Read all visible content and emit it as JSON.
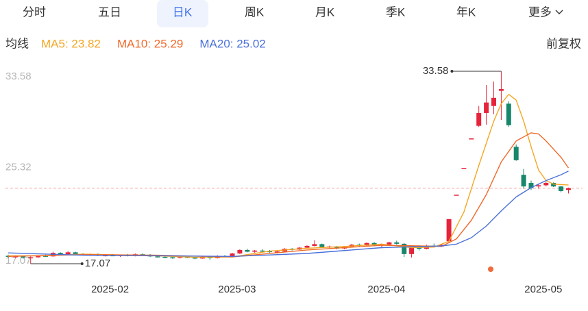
{
  "tabs": [
    "分时",
    "五日",
    "日K",
    "周K",
    "月K",
    "季K",
    "年K",
    "更多"
  ],
  "selected_tab": 2,
  "ma_label": "均线",
  "adjust_label": "前复权",
  "chart_data": {
    "type": "candlestick",
    "ylim": [
      17.07,
      33.58
    ],
    "yticks": [
      33.58,
      25.32,
      17.07
    ],
    "xlim": [
      0,
      75
    ],
    "xticks": [
      {
        "value": 14,
        "label": "2025-02"
      },
      {
        "value": 31,
        "label": "2025-03"
      },
      {
        "value": 51,
        "label": "2025-04"
      },
      {
        "value": 72,
        "label": "2025-05"
      }
    ],
    "up_color": "#e5243b",
    "down_color": "#17876b",
    "ohlc": [
      [
        17.75,
        17.85,
        17.6,
        17.68
      ],
      [
        17.68,
        17.8,
        17.55,
        17.72
      ],
      [
        17.72,
        17.78,
        17.5,
        17.6
      ],
      [
        17.6,
        17.7,
        17.07,
        17.62
      ],
      [
        17.62,
        17.8,
        17.58,
        17.75
      ],
      [
        17.75,
        17.85,
        17.65,
        17.7
      ],
      [
        17.7,
        18.1,
        17.68,
        18.0
      ],
      [
        18.0,
        18.05,
        17.8,
        17.85
      ],
      [
        17.85,
        18.15,
        17.82,
        18.05
      ],
      [
        18.05,
        18.1,
        17.85,
        17.9
      ],
      [
        17.9,
        17.98,
        17.78,
        17.82
      ],
      [
        17.82,
        17.95,
        17.75,
        17.9
      ],
      [
        17.9,
        17.95,
        17.72,
        17.78
      ],
      [
        17.78,
        17.88,
        17.7,
        17.8
      ],
      [
        17.8,
        17.9,
        17.72,
        17.76
      ],
      [
        17.76,
        17.85,
        17.65,
        17.82
      ],
      [
        17.82,
        17.9,
        17.7,
        17.74
      ],
      [
        17.74,
        17.95,
        17.7,
        17.88
      ],
      [
        17.88,
        17.96,
        17.78,
        17.84
      ],
      [
        17.84,
        17.9,
        17.66,
        17.7
      ],
      [
        17.7,
        17.78,
        17.6,
        17.66
      ],
      [
        17.66,
        17.74,
        17.55,
        17.62
      ],
      [
        17.62,
        17.7,
        17.5,
        17.58
      ],
      [
        17.58,
        17.72,
        17.52,
        17.66
      ],
      [
        17.66,
        17.76,
        17.55,
        17.6
      ],
      [
        17.6,
        17.65,
        17.45,
        17.52
      ],
      [
        17.52,
        17.7,
        17.5,
        17.64
      ],
      [
        17.64,
        17.72,
        17.4,
        17.55
      ],
      [
        17.55,
        17.8,
        17.52,
        17.74
      ],
      [
        17.74,
        17.82,
        17.62,
        17.68
      ],
      [
        17.68,
        18.0,
        17.65,
        17.95
      ],
      [
        17.95,
        18.3,
        17.9,
        18.25
      ],
      [
        18.25,
        18.35,
        18.05,
        18.1
      ],
      [
        18.1,
        18.25,
        18.0,
        18.2
      ],
      [
        18.2,
        18.32,
        18.08,
        18.15
      ],
      [
        18.15,
        18.25,
        18.02,
        18.08
      ],
      [
        18.08,
        18.2,
        17.95,
        18.12
      ],
      [
        18.12,
        18.4,
        18.1,
        18.35
      ],
      [
        18.35,
        18.42,
        18.2,
        18.28
      ],
      [
        18.28,
        18.5,
        18.25,
        18.45
      ],
      [
        18.45,
        18.65,
        18.4,
        18.6
      ],
      [
        18.6,
        19.1,
        18.55,
        18.75
      ],
      [
        18.75,
        18.8,
        18.45,
        18.5
      ],
      [
        18.5,
        18.62,
        18.4,
        18.55
      ],
      [
        18.55,
        18.6,
        18.3,
        18.38
      ],
      [
        18.38,
        18.55,
        18.32,
        18.5
      ],
      [
        18.5,
        18.78,
        18.45,
        18.7
      ],
      [
        18.7,
        18.8,
        18.55,
        18.62
      ],
      [
        18.62,
        18.9,
        18.58,
        18.85
      ],
      [
        18.85,
        18.92,
        18.6,
        18.66
      ],
      [
        18.66,
        18.8,
        18.4,
        18.72
      ],
      [
        18.72,
        18.95,
        18.68,
        18.9
      ],
      [
        18.9,
        19.05,
        18.7,
        18.78
      ],
      [
        18.78,
        18.85,
        17.65,
        17.9
      ],
      [
        17.9,
        18.55,
        17.6,
        18.5
      ],
      [
        18.5,
        18.65,
        18.2,
        18.35
      ],
      [
        18.35,
        18.7,
        18.3,
        18.62
      ],
      [
        18.62,
        18.8,
        18.45,
        18.55
      ],
      [
        18.55,
        18.75,
        18.5,
        18.7
      ],
      [
        19.0,
        20.9,
        18.9,
        20.9
      ],
      [
        22.99,
        22.99,
        22.99,
        22.99
      ],
      [
        25.29,
        25.29,
        25.29,
        25.29
      ],
      [
        27.82,
        27.82,
        27.82,
        27.82
      ],
      [
        28.9,
        30.6,
        28.8,
        30.0
      ],
      [
        30.0,
        32.4,
        29.0,
        30.9
      ],
      [
        30.6,
        32.7,
        29.9,
        31.3
      ],
      [
        31.9,
        33.58,
        29.4,
        32.05
      ],
      [
        30.8,
        31.0,
        28.8,
        28.95
      ],
      [
        27.1,
        27.3,
        25.9,
        25.95
      ],
      [
        24.7,
        25.2,
        23.5,
        23.7
      ],
      [
        24.0,
        24.2,
        23.4,
        23.55
      ],
      [
        23.7,
        23.95,
        23.5,
        23.8
      ],
      [
        23.8,
        24.1,
        23.7,
        24.0
      ],
      [
        24.0,
        24.05,
        23.65,
        23.7
      ],
      [
        23.7,
        23.75,
        23.2,
        23.3
      ],
      [
        23.4,
        23.6,
        23.1,
        23.55
      ]
    ],
    "ma": [
      {
        "name": "MA5: 23.82",
        "color": "#f5a623",
        "x": [
          0,
          5,
          10,
          15,
          20,
          25,
          30,
          35,
          40,
          45,
          50,
          54,
          57,
          59,
          61,
          63,
          65,
          66,
          67,
          68,
          69,
          70,
          71,
          72,
          73,
          75
        ],
        "values": [
          17.75,
          17.75,
          17.9,
          17.82,
          17.75,
          17.62,
          17.65,
          18.15,
          18.4,
          18.55,
          18.75,
          18.45,
          18.5,
          19.0,
          21.5,
          25.5,
          29.3,
          30.8,
          31.6,
          31.1,
          29.3,
          27.1,
          25.1,
          24.2,
          23.9,
          23.82
        ]
      },
      {
        "name": "MA10: 25.29",
        "color": "#f0692a",
        "x": [
          0,
          10,
          20,
          30,
          40,
          50,
          55,
          58,
          60,
          62,
          64,
          66,
          68,
          70,
          71,
          72,
          74,
          75
        ],
        "values": [
          17.7,
          17.85,
          17.8,
          17.65,
          18.25,
          18.65,
          18.6,
          18.55,
          19.2,
          20.8,
          23.0,
          25.8,
          27.6,
          28.3,
          28.2,
          27.6,
          26.2,
          25.29
        ]
      },
      {
        "name": "MA20: 25.02",
        "color": "#4a70d9",
        "x": [
          0,
          10,
          20,
          30,
          40,
          50,
          58,
          60,
          62,
          64,
          66,
          68,
          70,
          72,
          74,
          75
        ],
        "values": [
          18.0,
          17.8,
          17.75,
          17.7,
          17.95,
          18.45,
          18.6,
          18.75,
          19.3,
          20.3,
          21.6,
          22.8,
          23.6,
          24.2,
          24.7,
          25.02
        ]
      }
    ]
  }
}
